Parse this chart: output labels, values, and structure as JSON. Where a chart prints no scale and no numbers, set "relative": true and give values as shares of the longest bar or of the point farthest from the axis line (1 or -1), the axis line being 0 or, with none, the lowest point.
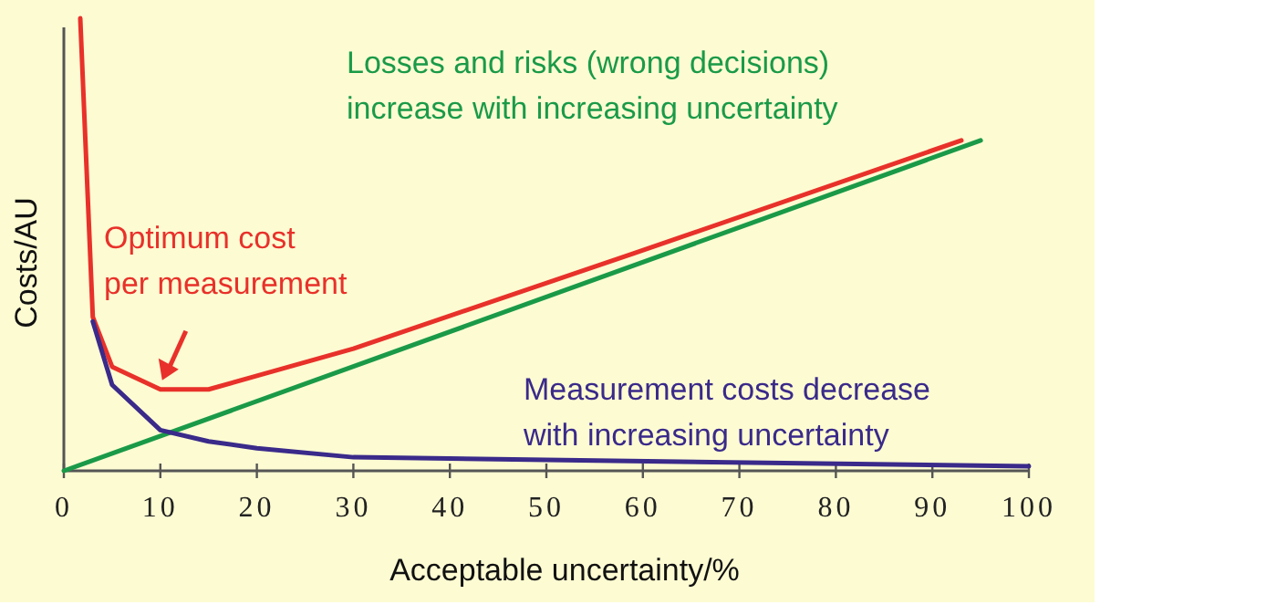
{
  "chart_data": {
    "type": "line",
    "relative": true,
    "xlabel": "Acceptable uncertainty/%",
    "ylabel": "Costs/AU",
    "xlim": [
      0,
      100
    ],
    "xticks": [
      0,
      10,
      20,
      30,
      40,
      50,
      60,
      70,
      80,
      90,
      100
    ],
    "grid": false,
    "marker": "none",
    "line_style": "solid",
    "series": [
      {
        "color": "#e8312a",
        "x": [
          1.7,
          3,
          5,
          10,
          15,
          20,
          30,
          59,
          93
        ],
        "values": [
          1.0,
          0.34,
          0.23,
          0.18,
          0.18,
          0.21,
          0.27,
          0.48,
          0.73
        ]
      },
      {
        "color": "#1a9a48",
        "x": [
          0,
          95
        ],
        "values": [
          0,
          0.73
        ]
      },
      {
        "color": "#3a2a8a",
        "x": [
          3,
          5,
          10,
          15,
          20,
          30,
          50,
          100
        ],
        "values": [
          0.33,
          0.19,
          0.09,
          0.065,
          0.05,
          0.03,
          0.024,
          0.01
        ]
      }
    ],
    "annotations": [
      {
        "text": "Optimum cost\nper measurement",
        "x": 10,
        "y": 0.18
      },
      "Losses and risks (wrong decisions)\nincrease with increasing uncertainty",
      "Measurement costs decrease\nwith increasing uncertainty"
    ]
  }
}
